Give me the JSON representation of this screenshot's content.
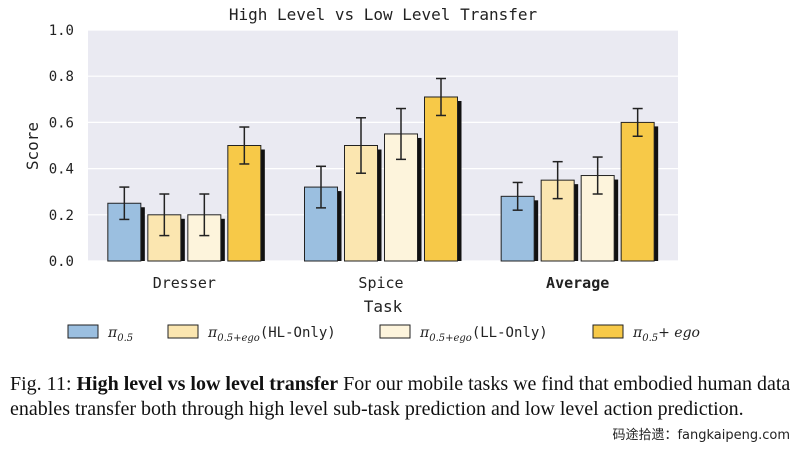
{
  "chart_data": {
    "type": "bar",
    "title": "High Level vs Low Level Transfer",
    "xlabel": "Task",
    "ylabel": "Score",
    "ylim": [
      0,
      1.0
    ],
    "yticks": [
      "0.0",
      "0.2",
      "0.4",
      "0.6",
      "0.8",
      "1.0"
    ],
    "grid": true,
    "categories": [
      "Dresser",
      "Spice",
      "Average"
    ],
    "category_bold": [
      false,
      false,
      true
    ],
    "series": [
      {
        "name": "π0.5",
        "legend_base": "π",
        "legend_sub": "0.5",
        "legend_suffix": "",
        "color": "#9bbfe0",
        "values": [
          0.25,
          0.32,
          0.28
        ],
        "err": [
          0.07,
          0.09,
          0.06
        ]
      },
      {
        "name": "π0.5+ego(HL-Only)",
        "legend_base": "π",
        "legend_sub": "0.5+ego",
        "legend_suffix": "(HL-Only)",
        "color": "#fbe6b0",
        "values": [
          0.2,
          0.5,
          0.35
        ],
        "err": [
          0.09,
          0.12,
          0.08
        ]
      },
      {
        "name": "π0.5+ego(LL-Only)",
        "legend_base": "π",
        "legend_sub": "0.5+ego",
        "legend_suffix": "(LL-Only)",
        "color": "#fdf4dc",
        "values": [
          0.2,
          0.55,
          0.37
        ],
        "err": [
          0.09,
          0.11,
          0.08
        ]
      },
      {
        "name": "π0.5+ego",
        "legend_base": "π",
        "legend_sub": "0.5",
        "legend_suffix": "",
        "legend_plus": "+ ego",
        "color": "#f7c948",
        "values": [
          0.5,
          0.71,
          0.6
        ],
        "err": [
          0.08,
          0.08,
          0.06
        ]
      }
    ]
  },
  "caption": {
    "prefix": "Fig. 11: ",
    "bold": "High level vs low level transfer",
    "text": " For our mobile tasks we find that embodied human data enables transfer both through high level sub-task prediction and low level action prediction."
  },
  "watermark": "码途拾遗：fangkaipeng.com"
}
